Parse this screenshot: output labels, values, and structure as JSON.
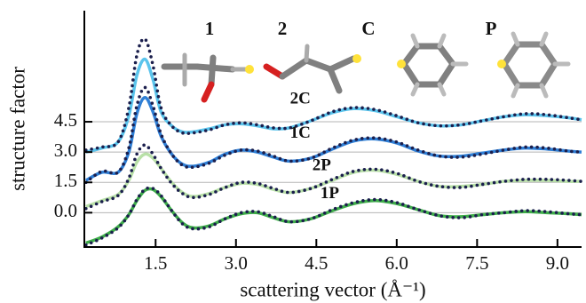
{
  "chart_data": {
    "type": "line",
    "x_label": "scattering vector (Å⁻¹)",
    "y_label": "structure factor",
    "molecule_labels": [
      "1",
      "2",
      "C",
      "P"
    ],
    "xlim": [
      0.17,
      9.45
    ],
    "ylim": [
      -1.7,
      10
    ],
    "xticks": [
      1.5,
      {
        "value": 3,
        "label": "3.0"
      },
      4.5,
      {
        "value": 6,
        "label": "6.0"
      },
      7.5,
      {
        "value": 9,
        "label": "9.0"
      }
    ],
    "yticks": [
      {
        "value": 0,
        "label": "0.0"
      },
      1.5,
      {
        "value": 3,
        "label": "3.0"
      },
      4.5
    ],
    "grid": true,
    "dotted_color": "#1b1f4d",
    "x": [
      0.2,
      0.5,
      0.8,
      1.0,
      1.15,
      1.3,
      1.45,
      1.6,
      1.8,
      2.0,
      2.2,
      2.5,
      2.8,
      3.1,
      3.4,
      3.7,
      4.0,
      4.4,
      4.8,
      5.2,
      5.6,
      6.0,
      6.4,
      6.8,
      7.2,
      7.6,
      8.0,
      8.4,
      8.8,
      9.2,
      9.45
    ],
    "series": [
      {
        "name": "2C",
        "color": "#5bc4ec",
        "values": [
          3.0,
          3.2,
          3.5,
          4.8,
          6.8,
          7.6,
          6.6,
          5.0,
          4.3,
          4.0,
          4.0,
          4.15,
          4.35,
          4.4,
          4.3,
          4.15,
          4.2,
          4.55,
          4.95,
          5.15,
          5.05,
          4.75,
          4.45,
          4.3,
          4.35,
          4.55,
          4.75,
          4.85,
          4.8,
          4.7,
          4.6
        ],
        "dotted_values": [
          3.1,
          3.25,
          3.5,
          5.2,
          7.8,
          8.6,
          7.3,
          5.2,
          4.3,
          3.95,
          3.95,
          4.1,
          4.35,
          4.45,
          4.35,
          4.2,
          4.2,
          4.55,
          5.0,
          5.2,
          5.1,
          4.8,
          4.45,
          4.3,
          4.35,
          4.55,
          4.75,
          4.9,
          4.85,
          4.7,
          4.6
        ]
      },
      {
        "name": "1C",
        "color": "#2f7fd6",
        "values": [
          1.6,
          2.0,
          2.0,
          3.0,
          4.9,
          5.7,
          5.0,
          3.8,
          2.9,
          2.4,
          2.3,
          2.5,
          2.9,
          3.1,
          3.0,
          2.75,
          2.55,
          2.7,
          3.15,
          3.55,
          3.65,
          3.45,
          3.05,
          2.8,
          2.8,
          2.95,
          3.1,
          3.2,
          3.15,
          3.05,
          3.0
        ],
        "dotted_values": [
          1.5,
          2.05,
          2.0,
          3.2,
          5.3,
          6.2,
          5.3,
          3.9,
          2.9,
          2.35,
          2.25,
          2.45,
          2.85,
          3.1,
          3.05,
          2.8,
          2.55,
          2.7,
          3.2,
          3.6,
          3.7,
          3.5,
          3.1,
          2.8,
          2.75,
          2.9,
          3.1,
          3.25,
          3.2,
          3.05,
          3.0
        ]
      },
      {
        "name": "2P",
        "color": "#b9e0a8",
        "values": [
          0.3,
          0.6,
          0.9,
          1.6,
          2.5,
          2.9,
          2.7,
          2.2,
          1.5,
          1.0,
          0.8,
          0.95,
          1.25,
          1.45,
          1.4,
          1.15,
          1.0,
          1.2,
          1.6,
          2.0,
          2.1,
          1.9,
          1.55,
          1.3,
          1.3,
          1.4,
          1.55,
          1.6,
          1.6,
          1.55,
          1.55
        ],
        "dotted_values": [
          0.2,
          0.55,
          0.85,
          1.7,
          2.9,
          3.35,
          2.9,
          2.2,
          1.45,
          0.95,
          0.75,
          0.9,
          1.25,
          1.5,
          1.45,
          1.2,
          1.0,
          1.2,
          1.65,
          2.05,
          2.15,
          1.95,
          1.55,
          1.3,
          1.25,
          1.4,
          1.55,
          1.65,
          1.65,
          1.6,
          1.55
        ]
      },
      {
        "name": "1P",
        "color": "#3fae4a",
        "values": [
          -1.5,
          -1.2,
          -0.7,
          -0.1,
          0.6,
          1.1,
          1.15,
          0.8,
          0.1,
          -0.5,
          -0.75,
          -0.65,
          -0.3,
          -0.05,
          0.0,
          -0.25,
          -0.45,
          -0.3,
          0.1,
          0.45,
          0.6,
          0.45,
          0.15,
          -0.15,
          -0.2,
          -0.1,
          0.0,
          0.05,
          0.0,
          -0.05,
          -0.1
        ],
        "dotted_values": [
          -1.6,
          -1.25,
          -0.75,
          -0.1,
          0.65,
          1.15,
          1.2,
          0.85,
          0.1,
          -0.55,
          -0.8,
          -0.7,
          -0.3,
          0.0,
          0.05,
          -0.2,
          -0.45,
          -0.3,
          0.15,
          0.5,
          0.65,
          0.5,
          0.15,
          -0.15,
          -0.25,
          -0.1,
          0.0,
          0.1,
          0.05,
          -0.05,
          -0.1
        ]
      }
    ]
  }
}
